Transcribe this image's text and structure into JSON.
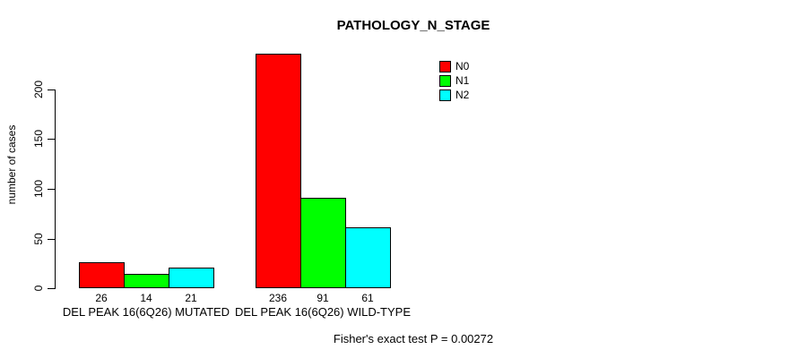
{
  "chart_data": {
    "type": "bar",
    "title": "PATHOLOGY_N_STAGE",
    "ylabel": "number of cases",
    "xlabel": "",
    "categories": [
      "DEL PEAK 16(6Q26) MUTATED",
      "DEL PEAK 16(6Q26) WILD-TYPE"
    ],
    "series": [
      {
        "name": "N0",
        "color": "#ff0000",
        "values": [
          26,
          236
        ]
      },
      {
        "name": "N1",
        "color": "#00ff00",
        "values": [
          14,
          91
        ]
      },
      {
        "name": "N2",
        "color": "#00ffff",
        "values": [
          21,
          61
        ]
      }
    ],
    "bar_value_labels": [
      [
        "26",
        "14",
        "21"
      ],
      [
        "236",
        "91",
        "61"
      ]
    ],
    "yticks": [
      0,
      50,
      100,
      150,
      200
    ],
    "ylim": [
      0,
      236
    ],
    "grid": false,
    "legend_position": "top-right",
    "annotation": "Fisher's exact test P = 0.00272",
    "background_color": "#ffffff",
    "bar_border_color": "#000000"
  }
}
